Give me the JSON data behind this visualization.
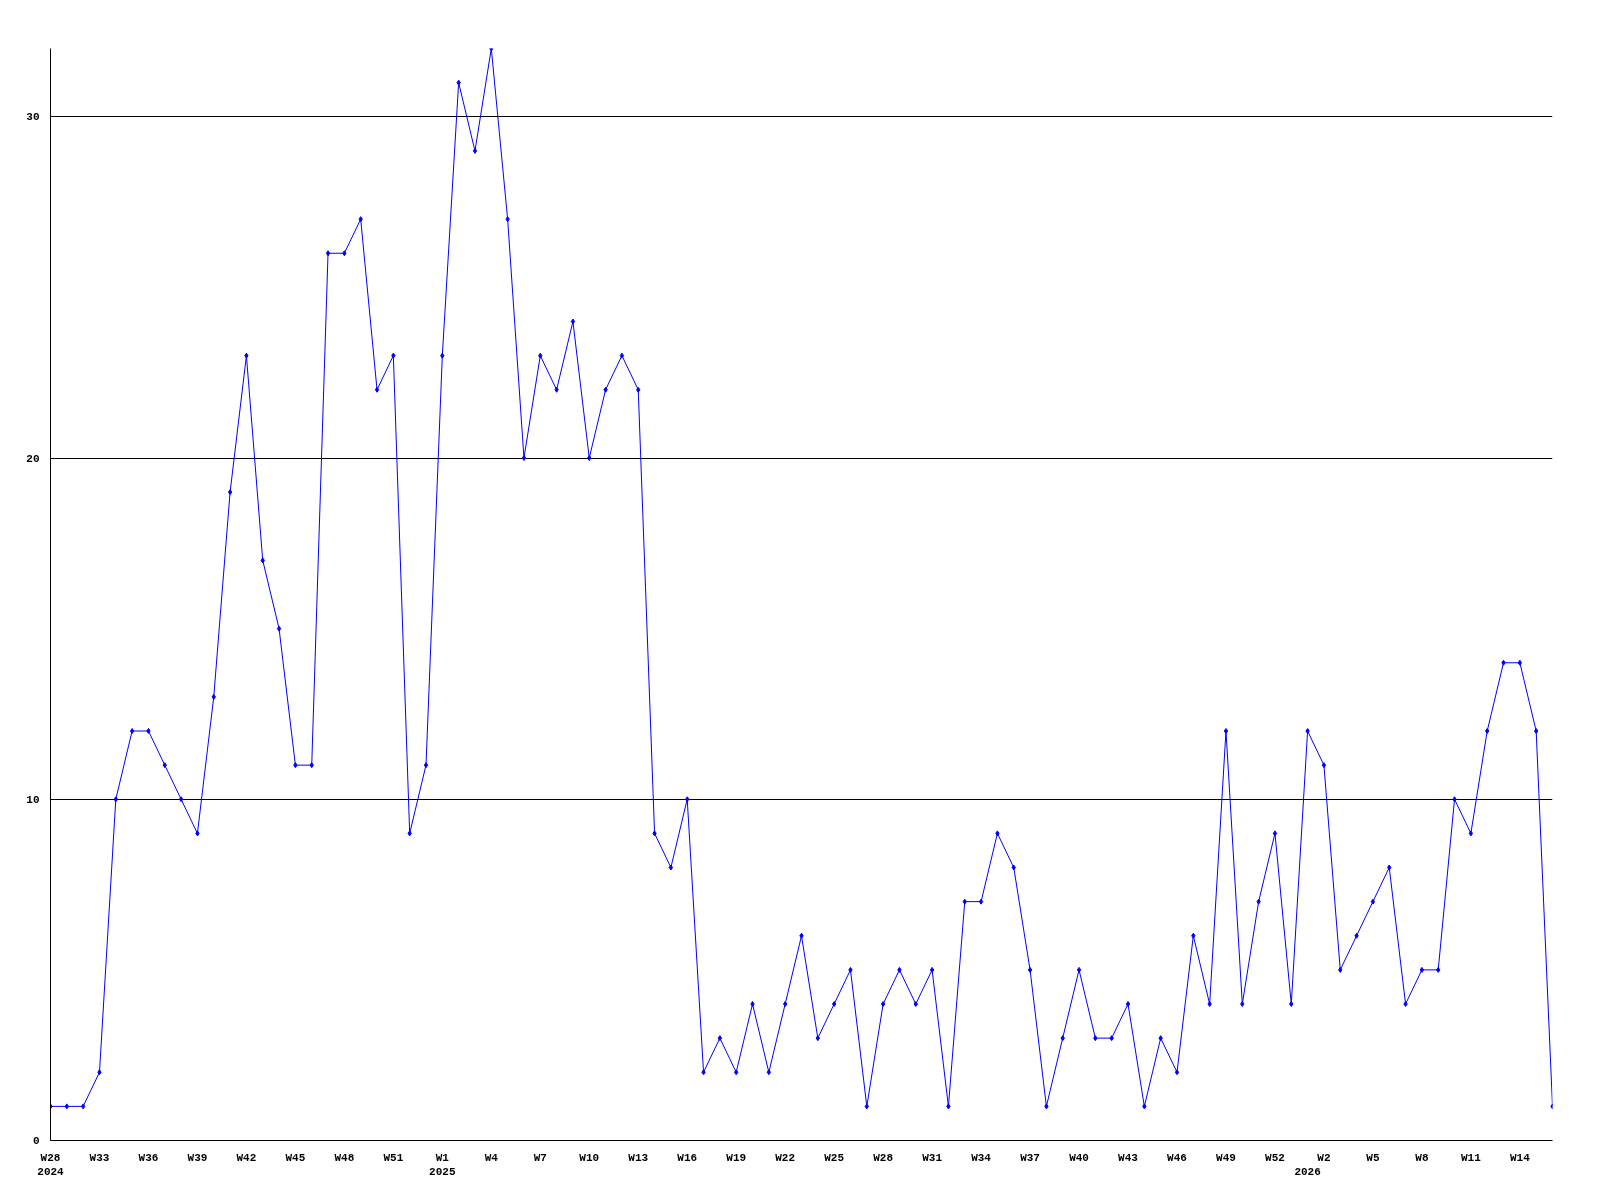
{
  "chart_data": {
    "type": "line",
    "categories": [
      "W28\n2024",
      null,
      null,
      "W33",
      null,
      null,
      "W36",
      null,
      null,
      "W39",
      null,
      null,
      "W42",
      null,
      null,
      "W45",
      null,
      null,
      "W48",
      null,
      null,
      "W51",
      null,
      null,
      "W1\n2025",
      null,
      null,
      "W4",
      null,
      null,
      "W7",
      null,
      null,
      "W10",
      null,
      null,
      "W13",
      null,
      null,
      "W16",
      null,
      null,
      "W19",
      null,
      null,
      "W22",
      null,
      null,
      "W25",
      null,
      null,
      "W28",
      null,
      null,
      "W31",
      null,
      null,
      "W34",
      null,
      null,
      "W37",
      null,
      null,
      "W40",
      null,
      null,
      "W43",
      null,
      null,
      "W46",
      null,
      null,
      "W49",
      null,
      null,
      "W52",
      null,
      "\n2026",
      "W2",
      null,
      null,
      "W5",
      null,
      null,
      "W8",
      null,
      null,
      "W11",
      null,
      null,
      "W14",
      null,
      null
    ],
    "series": [
      {
        "color": "#0000ff",
        "values": [
          1,
          1,
          1,
          2,
          10,
          12,
          12,
          11,
          10,
          9,
          13,
          19,
          23,
          17,
          15,
          11,
          11,
          26,
          26,
          27,
          22,
          23,
          9,
          11,
          23,
          31,
          29,
          32,
          27,
          20,
          23,
          22,
          24,
          20,
          22,
          23,
          22,
          9,
          8,
          10,
          2,
          3,
          2,
          4,
          2,
          4,
          6,
          3,
          4,
          5,
          1,
          4,
          5,
          4,
          5,
          1,
          7,
          7,
          9,
          8,
          5,
          1,
          3,
          5,
          3,
          3,
          4,
          1,
          3,
          2,
          6,
          4,
          12,
          4,
          7,
          9,
          4,
          12,
          11,
          5,
          6,
          7,
          8,
          4,
          5,
          5,
          10,
          9,
          12,
          14,
          14,
          12,
          1
        ]
      }
    ],
    "ylim": [
      0,
      32
    ],
    "yticks": [
      0,
      10,
      20,
      30
    ],
    "grid": "y",
    "marker": "diamond",
    "line_style": "solid"
  }
}
